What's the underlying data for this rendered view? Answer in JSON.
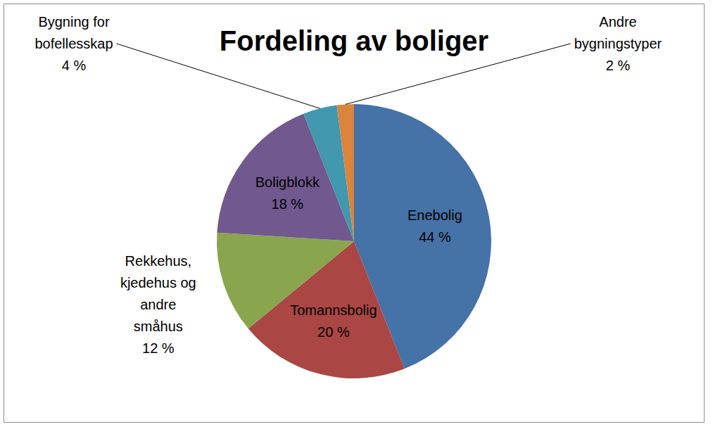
{
  "chart_data": {
    "type": "pie",
    "title": "Fordeling av boliger",
    "categories": [
      "Enebolig",
      "Tomannsbolig",
      "Rekkehus, kjedehus og andre småhus",
      "Boligblokk",
      "Bygning for bofellesskap",
      "Andre bygningstyper"
    ],
    "values": [
      44,
      20,
      12,
      18,
      4,
      2
    ],
    "value_labels": [
      "44 %",
      "20 %",
      "12 %",
      "18 %",
      "4 %",
      "2 %"
    ],
    "colors": [
      "#4572a7",
      "#aa4643",
      "#89a54e",
      "#71588f",
      "#4198af",
      "#db843d"
    ],
    "data_labels": true
  }
}
